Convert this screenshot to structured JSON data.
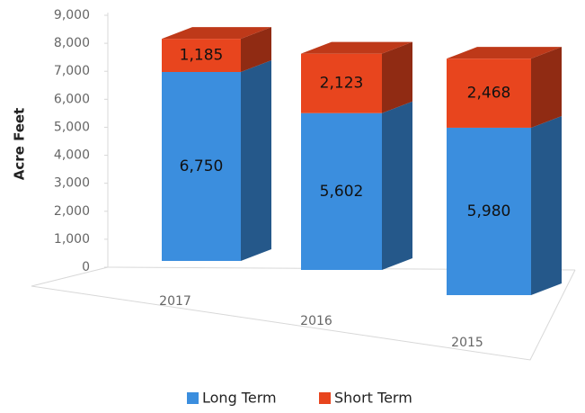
{
  "chart_data": {
    "type": "bar3d_stacked",
    "y_label": "Acre Feet",
    "categories": [
      "2017",
      "2016",
      "2015"
    ],
    "series": [
      {
        "name": "Long Term",
        "color": "#3b8ede",
        "values": [
          6750,
          5602,
          5980
        ],
        "value_labels": [
          "6,750",
          "5,602",
          "5,980"
        ]
      },
      {
        "name": "Short Term",
        "color": "#e8451e",
        "values": [
          1185,
          2123,
          2468
        ],
        "value_labels": [
          "1,185",
          "2,123",
          "2,468"
        ]
      }
    ],
    "ylim": [
      0,
      9000
    ],
    "yticks": [
      0,
      {
        "value": 1000,
        "label": "1,000"
      },
      {
        "value": 2000,
        "label": "2,000"
      },
      {
        "value": 3000,
        "label": "3,000"
      },
      {
        "value": 4000,
        "label": "4,000"
      },
      {
        "value": 5000,
        "label": "5,000"
      },
      {
        "value": 6000,
        "label": "6,000"
      },
      {
        "value": 7000,
        "label": "7,000"
      },
      {
        "value": 8000,
        "label": "8,000"
      },
      {
        "value": 9000,
        "label": "9,000"
      }
    ],
    "legend": "bottom"
  }
}
